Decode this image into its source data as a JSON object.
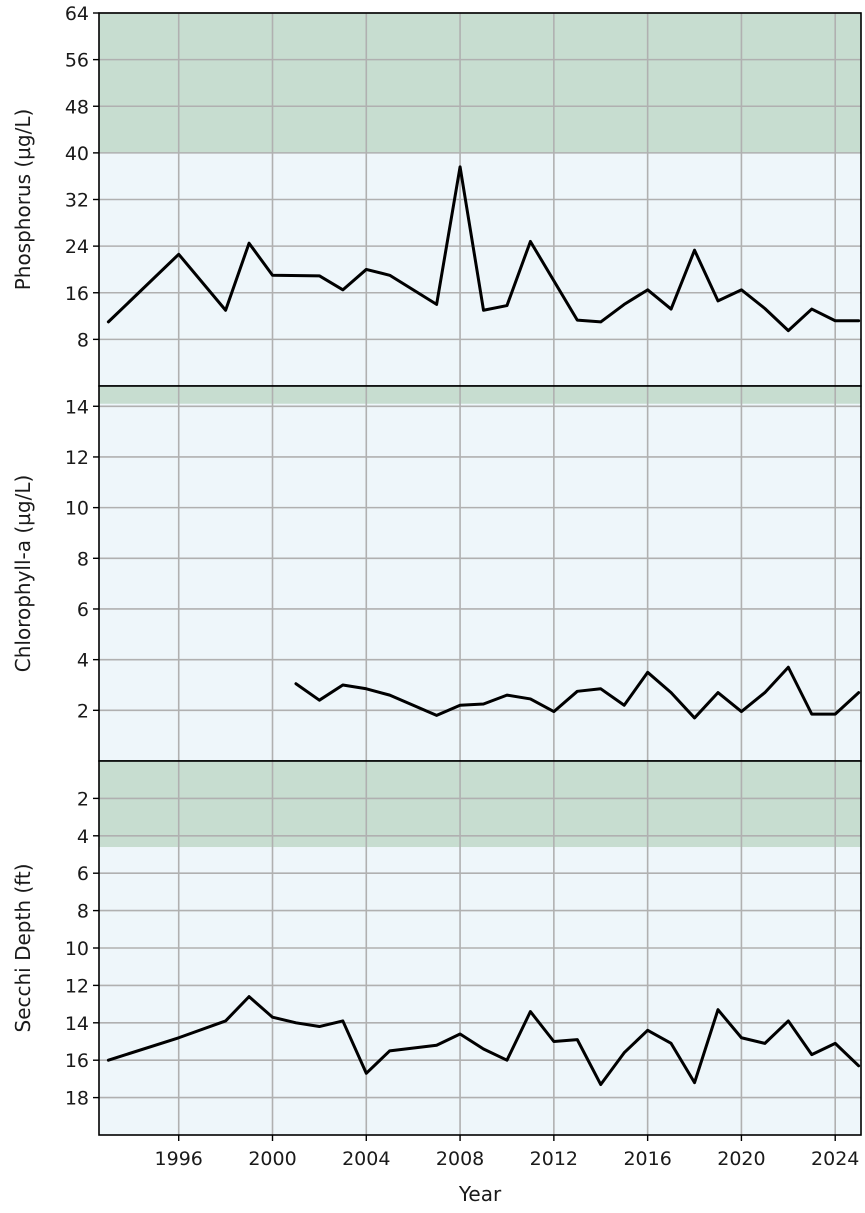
{
  "colors": {
    "panel_background": "#eef6fa",
    "threshold_band": "#c7ddd0",
    "line": "#000000",
    "grid": "#b0b0b0"
  },
  "chart_data": {
    "type": "line",
    "xlabel": "Year",
    "xlim": [
      1992.6,
      2025.1
    ],
    "x_ticks": [
      1996,
      2000,
      2004,
      2008,
      2012,
      2016,
      2020,
      2024
    ],
    "grid": true,
    "panels": [
      {
        "ylabel": "Phosphorus (µg/L)",
        "ylim": [
          0,
          64
        ],
        "y_inverted": false,
        "y_ticks": [
          8,
          16,
          24,
          32,
          40,
          48,
          56,
          64
        ],
        "band": [
          40,
          64
        ],
        "x": [
          1993,
          1996,
          1998,
          1999,
          2000,
          2002,
          2003,
          2004,
          2005,
          2007,
          2008,
          2009,
          2010,
          2011,
          2013,
          2014,
          2015,
          2016,
          2017,
          2018,
          2019,
          2020,
          2021,
          2022,
          2023,
          2024,
          2025
        ],
        "y": [
          11,
          22.6,
          13,
          24.5,
          19,
          18.9,
          16.5,
          20,
          19,
          14,
          37.6,
          13,
          13.8,
          24.8,
          11.3,
          11,
          14,
          16.5,
          13.2,
          23.3,
          14.6,
          16.5,
          13.3,
          9.5,
          13.2,
          11.2,
          11.2
        ]
      },
      {
        "ylabel": "Chlorophyll-a (µg/L)",
        "ylim": [
          0,
          14.8
        ],
        "y_inverted": false,
        "y_ticks": [
          2,
          4,
          6,
          8,
          10,
          12,
          14
        ],
        "band": [
          14.1,
          14.8
        ],
        "x": [
          2001,
          2002,
          2003,
          2004,
          2005,
          2007,
          2008,
          2009,
          2010,
          2011,
          2012,
          2013,
          2014,
          2015,
          2016,
          2017,
          2018,
          2019,
          2020,
          2021,
          2022,
          2023,
          2024,
          2025
        ],
        "y": [
          3.05,
          2.4,
          3.0,
          2.85,
          2.6,
          1.8,
          2.2,
          2.25,
          2.6,
          2.45,
          1.95,
          2.75,
          2.85,
          2.2,
          3.5,
          2.7,
          1.7,
          2.7,
          1.95,
          2.7,
          3.7,
          1.85,
          1.85,
          2.7
        ]
      },
      {
        "ylabel": "Secchi Depth (ft)",
        "ylim": [
          20,
          0
        ],
        "y_inverted": true,
        "y_ticks": [
          2,
          4,
          6,
          8,
          10,
          12,
          14,
          16,
          18
        ],
        "band": [
          0,
          4.6
        ],
        "x": [
          1993,
          1996,
          1998,
          1999,
          2000,
          2001,
          2002,
          2003,
          2004,
          2005,
          2007,
          2008,
          2009,
          2010,
          2011,
          2012,
          2013,
          2014,
          2015,
          2016,
          2017,
          2018,
          2019,
          2020,
          2021,
          2022,
          2023,
          2024,
          2025
        ],
        "y": [
          16,
          14.8,
          13.9,
          12.6,
          13.7,
          14.0,
          14.2,
          13.9,
          16.7,
          15.5,
          15.2,
          14.6,
          15.4,
          16.0,
          13.4,
          15.0,
          14.9,
          17.3,
          15.6,
          14.4,
          15.1,
          17.2,
          13.3,
          14.8,
          15.1,
          13.9,
          15.7,
          15.1,
          16.3
        ]
      }
    ]
  }
}
